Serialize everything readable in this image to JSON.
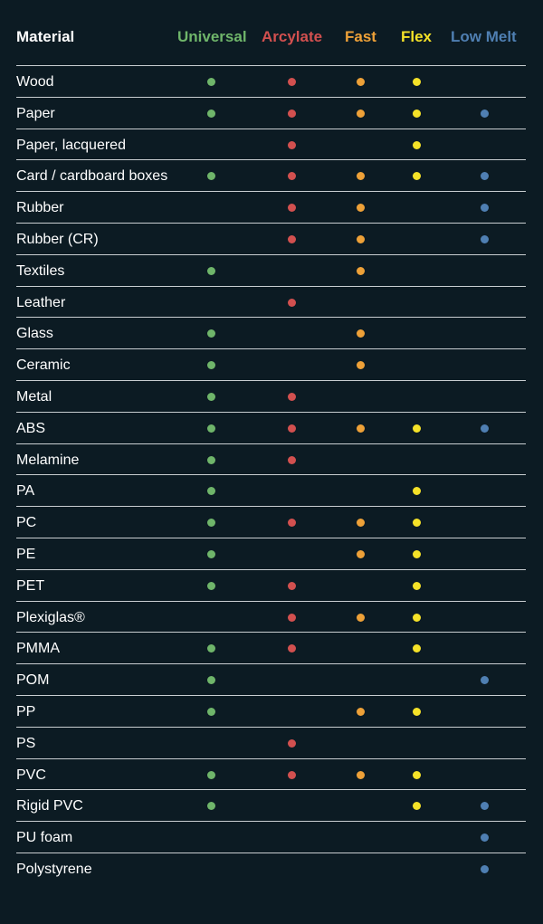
{
  "header": {
    "material": "Material",
    "columns": [
      {
        "label": "Universal",
        "color": "#6fb56a"
      },
      {
        "label": "Arcylate",
        "color": "#d2504f"
      },
      {
        "label": "Fast",
        "color": "#eea138"
      },
      {
        "label": "Flex",
        "color": "#f5e228"
      },
      {
        "label": "Low Melt",
        "color": "#4f7fb2"
      }
    ]
  },
  "rows": [
    {
      "material": "Wood",
      "marks": [
        true,
        true,
        true,
        true,
        false
      ]
    },
    {
      "material": "Paper",
      "marks": [
        true,
        true,
        true,
        true,
        true
      ]
    },
    {
      "material": "Paper, lacquered",
      "marks": [
        false,
        true,
        false,
        true,
        false
      ]
    },
    {
      "material": "Card / cardboard boxes",
      "marks": [
        true,
        true,
        true,
        true,
        true
      ]
    },
    {
      "material": "Rubber",
      "marks": [
        false,
        true,
        true,
        false,
        true
      ]
    },
    {
      "material": "Rubber (CR)",
      "marks": [
        false,
        true,
        true,
        false,
        true
      ]
    },
    {
      "material": "Textiles",
      "marks": [
        true,
        false,
        true,
        false,
        false
      ]
    },
    {
      "material": "Leather",
      "marks": [
        false,
        true,
        false,
        false,
        false
      ]
    },
    {
      "material": "Glass",
      "marks": [
        true,
        false,
        true,
        false,
        false
      ]
    },
    {
      "material": "Ceramic",
      "marks": [
        true,
        false,
        true,
        false,
        false
      ]
    },
    {
      "material": "Metal",
      "marks": [
        true,
        true,
        false,
        false,
        false
      ]
    },
    {
      "material": "ABS",
      "marks": [
        true,
        true,
        true,
        true,
        true
      ]
    },
    {
      "material": "Melamine",
      "marks": [
        true,
        true,
        false,
        false,
        false
      ]
    },
    {
      "material": "PA",
      "marks": [
        true,
        false,
        false,
        true,
        false
      ]
    },
    {
      "material": "PC",
      "marks": [
        true,
        true,
        true,
        true,
        false
      ]
    },
    {
      "material": "PE",
      "marks": [
        true,
        false,
        true,
        true,
        false
      ]
    },
    {
      "material": "PET",
      "marks": [
        true,
        true,
        false,
        true,
        false
      ]
    },
    {
      "material": "Plexiglas®",
      "marks": [
        false,
        true,
        true,
        true,
        false
      ]
    },
    {
      "material": "PMMA",
      "marks": [
        true,
        true,
        false,
        true,
        false
      ]
    },
    {
      "material": "POM",
      "marks": [
        true,
        false,
        false,
        false,
        true
      ]
    },
    {
      "material": "PP",
      "marks": [
        true,
        false,
        true,
        true,
        false
      ]
    },
    {
      "material": "PS",
      "marks": [
        false,
        true,
        false,
        false,
        false
      ]
    },
    {
      "material": "PVC",
      "marks": [
        true,
        true,
        true,
        true,
        false
      ]
    },
    {
      "material": "Rigid PVC",
      "marks": [
        true,
        false,
        false,
        true,
        true
      ]
    },
    {
      "material": "PU foam",
      "marks": [
        false,
        false,
        false,
        false,
        true
      ]
    },
    {
      "material": "Polystyrene",
      "marks": [
        false,
        false,
        false,
        false,
        true
      ]
    }
  ]
}
